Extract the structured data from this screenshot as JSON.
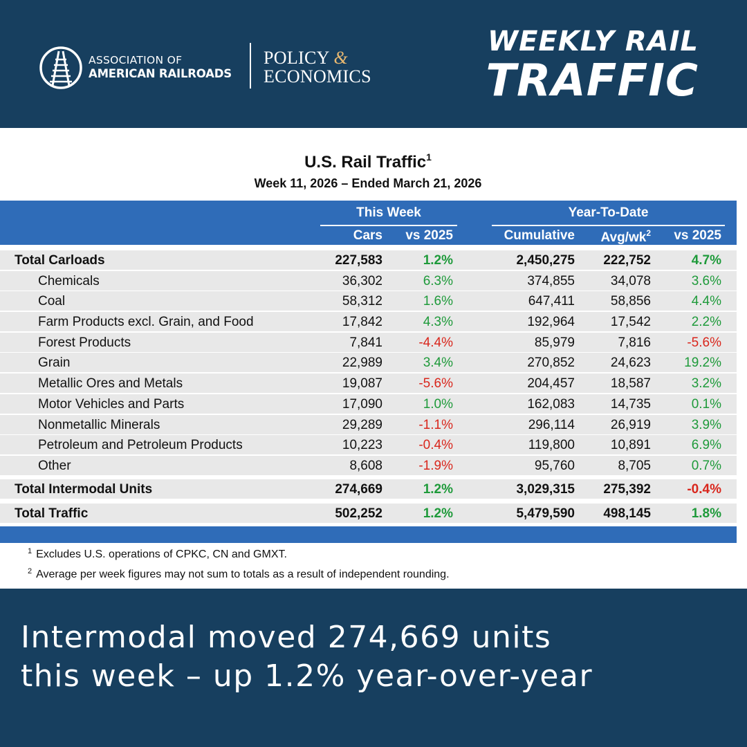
{
  "header": {
    "org_line1": "ASSOCIATION OF",
    "org_line2": "AMERICAN RAILROADS",
    "policy_line1": "POLICY",
    "policy_amp": "&",
    "policy_line2": "ECONOMICS",
    "title_line1": "WEEKLY RAIL",
    "title_line2": "TRAFFIC"
  },
  "table": {
    "title": "U.S. Rail Traffic",
    "title_footnote": "1",
    "subtitle": "Week 11, 2026 – Ended March 21, 2026",
    "group_this_week": "This Week",
    "group_ytd": "Year-To-Date",
    "col_cars": "Cars",
    "col_vs_week": "vs 2025",
    "col_cumulative": "Cumulative",
    "col_avg": "Avg/wk",
    "col_avg_footnote": "2",
    "col_vs_ytd": "vs 2025"
  },
  "chart_data": {
    "type": "table",
    "title": "U.S. Rail Traffic",
    "subtitle": "Week 11, 2026 – Ended March 21, 2026",
    "columns": [
      "Cars",
      "vs 2025",
      "Cumulative",
      "Avg/wk",
      "vs 2025"
    ],
    "rows": [
      {
        "label": "Total Carloads",
        "cars": "227,583",
        "vs_week": "1.2%",
        "cumulative": "2,450,275",
        "avg": "222,752",
        "vs_ytd": "4.7%"
      },
      {
        "label": "Chemicals",
        "cars": "36,302",
        "vs_week": "6.3%",
        "cumulative": "374,855",
        "avg": "34,078",
        "vs_ytd": "3.6%"
      },
      {
        "label": "Coal",
        "cars": "58,312",
        "vs_week": "1.6%",
        "cumulative": "647,411",
        "avg": "58,856",
        "vs_ytd": "4.4%"
      },
      {
        "label": "Farm Products excl. Grain, and Food",
        "cars": "17,842",
        "vs_week": "4.3%",
        "cumulative": "192,964",
        "avg": "17,542",
        "vs_ytd": "2.2%"
      },
      {
        "label": "Forest Products",
        "cars": "7,841",
        "vs_week": "-4.4%",
        "cumulative": "85,979",
        "avg": "7,816",
        "vs_ytd": "-5.6%"
      },
      {
        "label": "Grain",
        "cars": "22,989",
        "vs_week": "3.4%",
        "cumulative": "270,852",
        "avg": "24,623",
        "vs_ytd": "19.2%"
      },
      {
        "label": "Metallic Ores and Metals",
        "cars": "19,087",
        "vs_week": "-5.6%",
        "cumulative": "204,457",
        "avg": "18,587",
        "vs_ytd": "3.2%"
      },
      {
        "label": "Motor Vehicles and Parts",
        "cars": "17,090",
        "vs_week": "1.0%",
        "cumulative": "162,083",
        "avg": "14,735",
        "vs_ytd": "0.1%"
      },
      {
        "label": "Nonmetallic Minerals",
        "cars": "29,289",
        "vs_week": "-1.1%",
        "cumulative": "296,114",
        "avg": "26,919",
        "vs_ytd": "3.9%"
      },
      {
        "label": "Petroleum and Petroleum Products",
        "cars": "10,223",
        "vs_week": "-0.4%",
        "cumulative": "119,800",
        "avg": "10,891",
        "vs_ytd": "6.9%"
      },
      {
        "label": "Other",
        "cars": "8,608",
        "vs_week": "-1.9%",
        "cumulative": "95,760",
        "avg": "8,705",
        "vs_ytd": "0.7%"
      },
      {
        "label": "Total Intermodal Units",
        "cars": "274,669",
        "vs_week": "1.2%",
        "cumulative": "3,029,315",
        "avg": "275,392",
        "vs_ytd": "-0.4%"
      },
      {
        "label": "Total Traffic",
        "cars": "502,252",
        "vs_week": "1.2%",
        "cumulative": "5,479,590",
        "avg": "498,145",
        "vs_ytd": "1.8%"
      }
    ]
  },
  "footnotes": [
    {
      "mark": "1",
      "text": "Excludes U.S. operations of CPKC, CN and GMXT."
    },
    {
      "mark": "2",
      "text": "Average per week figures may not sum to totals as a result of independent rounding."
    }
  ],
  "banner": {
    "line1": "Intermodal moved 274,669 units",
    "line2": "this week – up 1.2% year-over-year"
  },
  "colors": {
    "navy": "#173f5f",
    "table_blue": "#2f6cb8",
    "positive": "#1e9a3a",
    "negative": "#d9261c",
    "accent_amp": "#e8b870"
  }
}
